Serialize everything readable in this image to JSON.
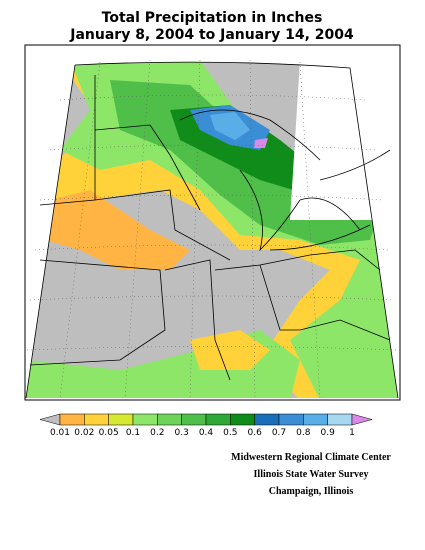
{
  "title": [
    "Total Precipitation in Inches",
    "January 8, 2004 to January 14, 2004"
  ],
  "legend": {
    "colors": [
      "#bebebe",
      "#ffb444",
      "#ffd23a",
      "#d6e832",
      "#8ee668",
      "#6fd35a",
      "#4fbf4a",
      "#2fa838",
      "#108c1a",
      "#1a6fb8",
      "#3a8ed6",
      "#5aaee8",
      "#a8d8f0",
      "#d98ae8"
    ],
    "labels": [
      "0.01",
      "0.02",
      "0.05",
      "0.1",
      "0.2",
      "0.3",
      "0.4",
      "0.5",
      "0.6",
      "0.7",
      "0.8",
      "0.9",
      "1"
    ]
  },
  "credits": [
    "Midwestern Regional Climate Center",
    "Illinois State Water Survey",
    "Champaign, Illinois"
  ]
}
